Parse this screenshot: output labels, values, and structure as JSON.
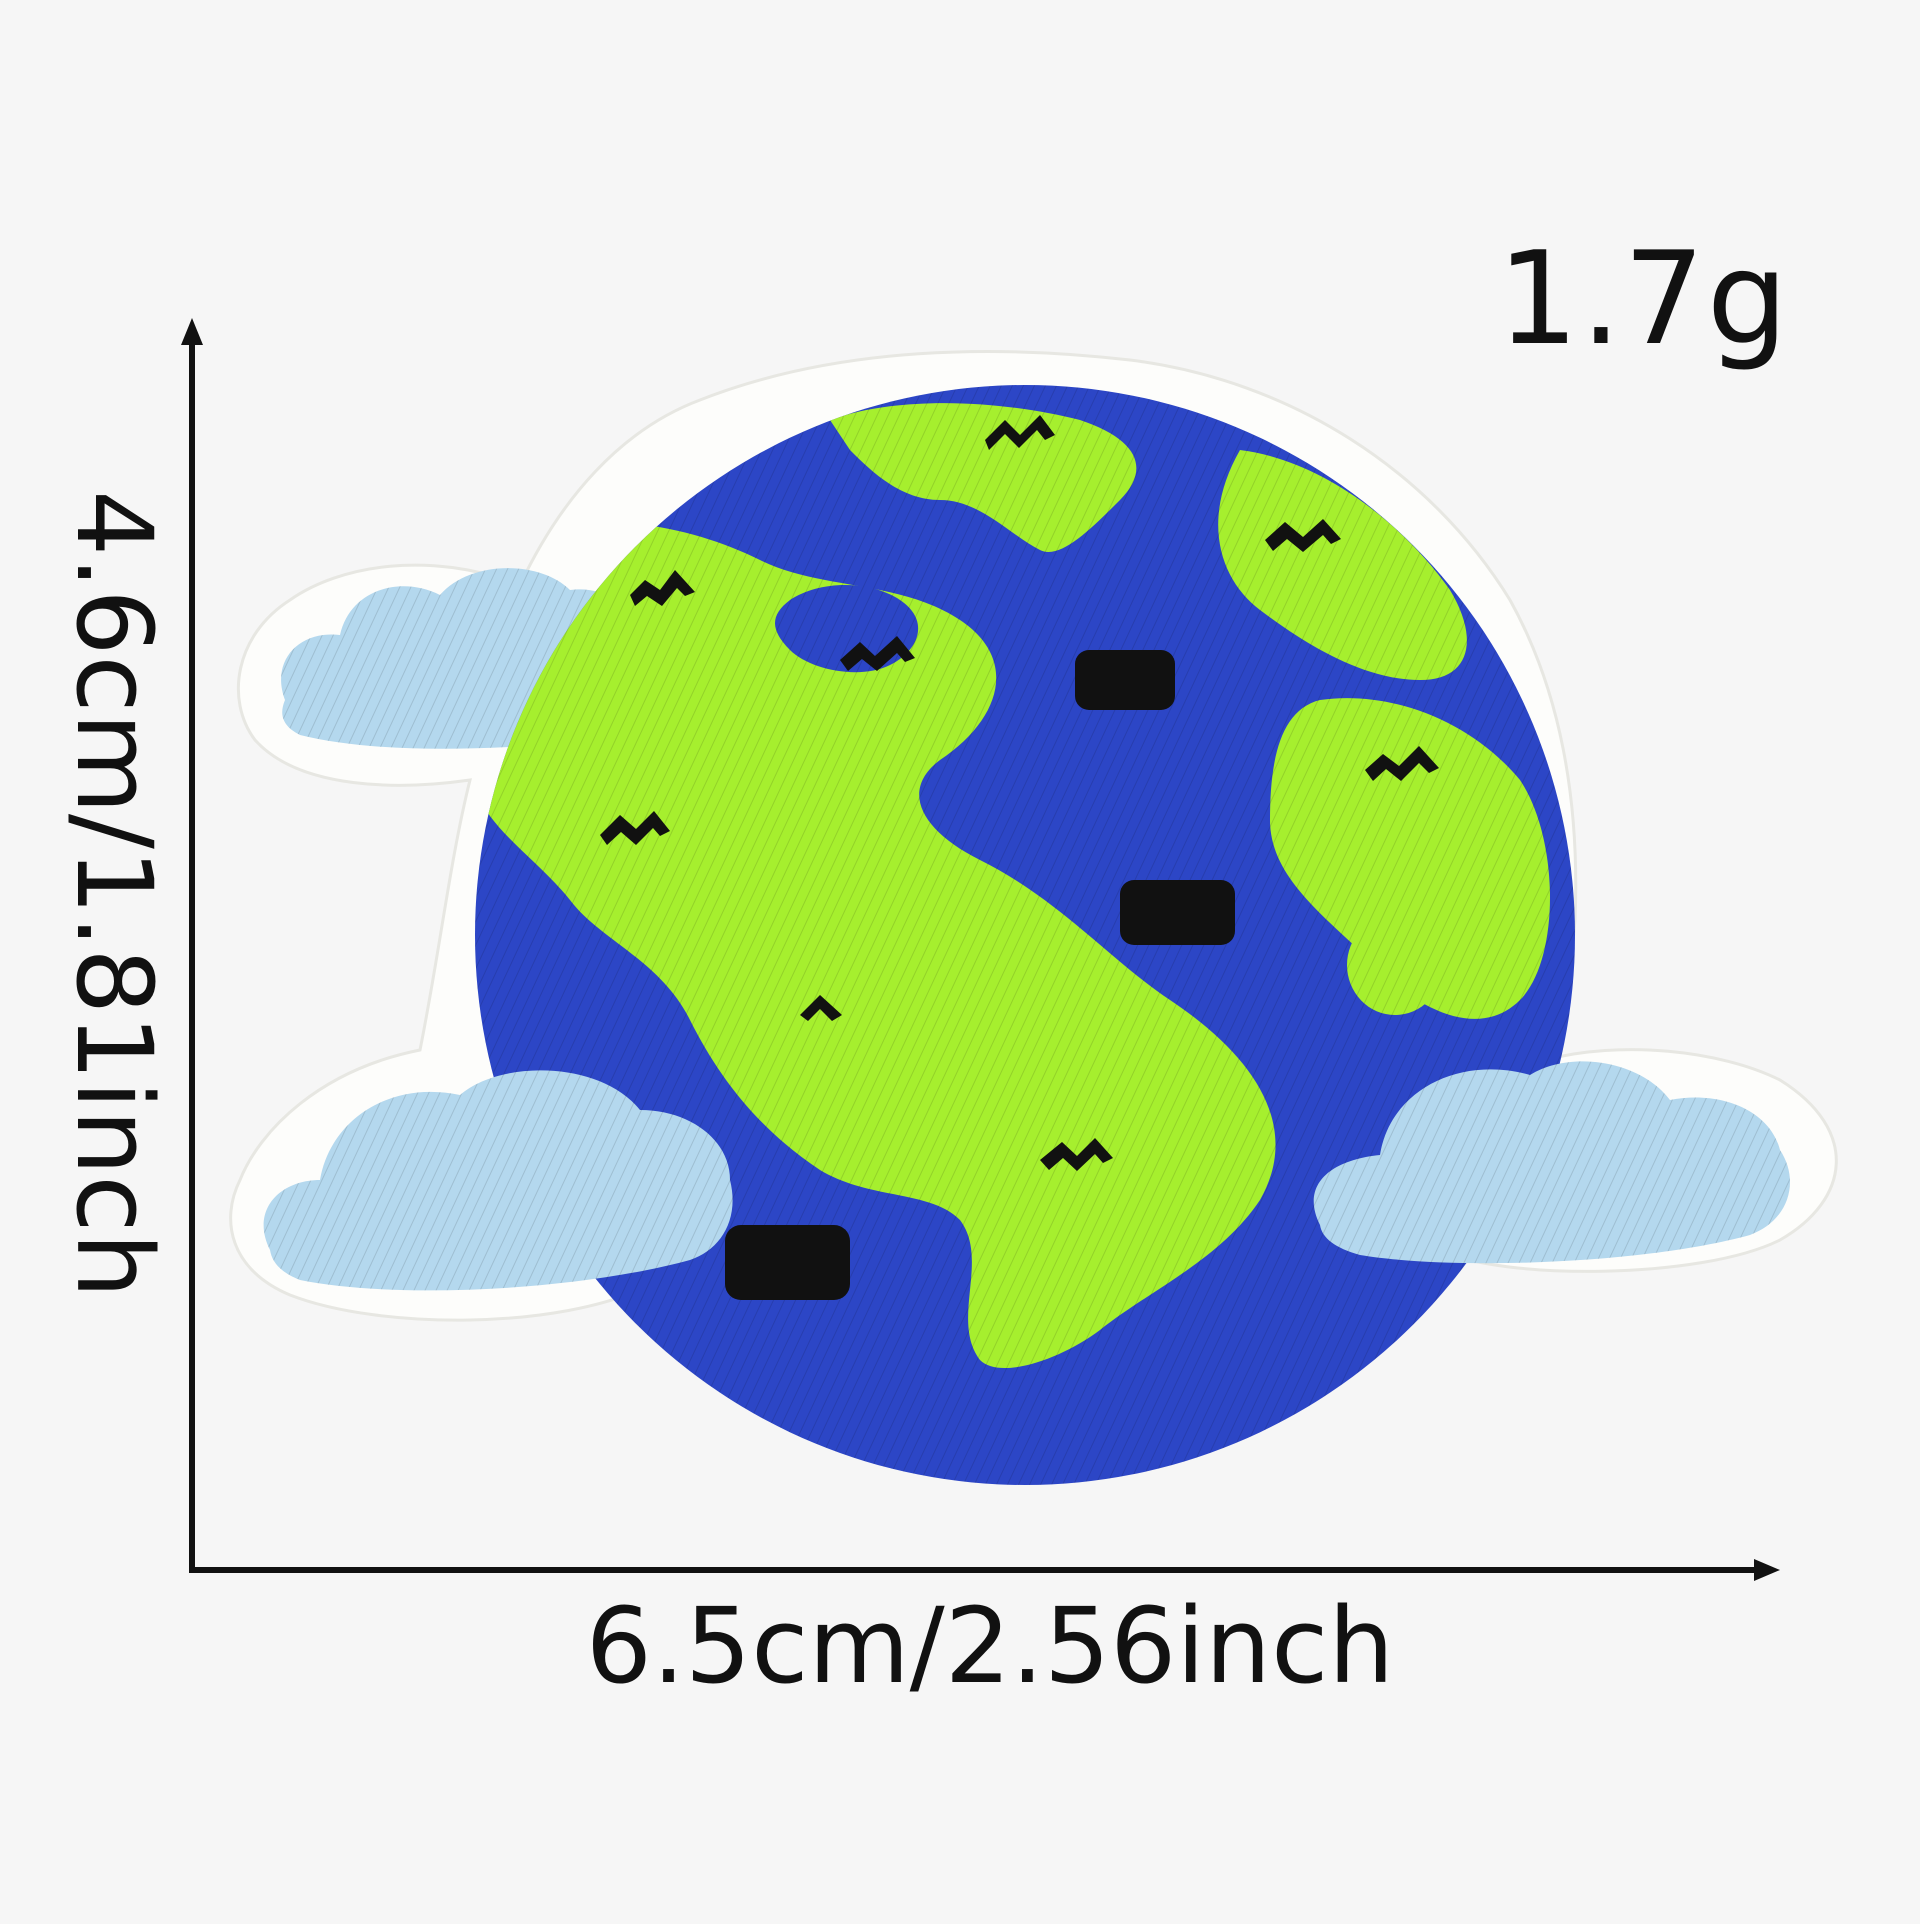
{
  "dimensions": {
    "weight": "1.7g",
    "width": "6.5cm/2.56inch",
    "height": "4.6cm/1.81inch"
  },
  "colors": {
    "ocean": "#2c46c6",
    "land": "#a6ef2e",
    "cloud": "#b4d8ee",
    "border": "#fdfdfb",
    "stitch_marks": "#111111"
  },
  "product": {
    "name": "earth-embroidered-patch",
    "icon": "earth-with-clouds-icon"
  }
}
